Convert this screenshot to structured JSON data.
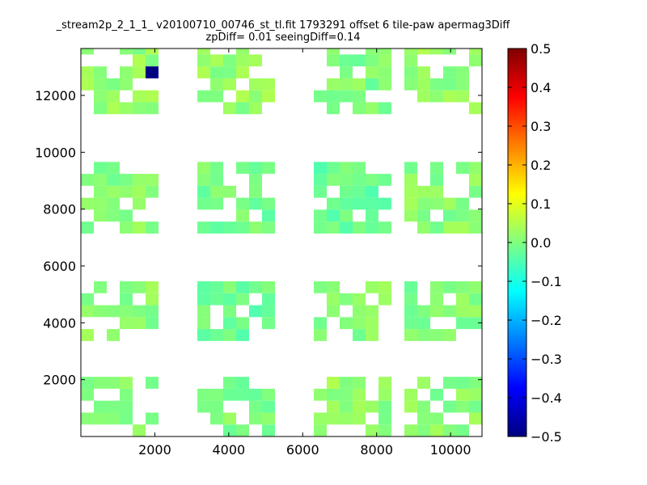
{
  "chart_data": {
    "type": "heatmap",
    "title": "_stream2p_2_1_1_ v20100710_00746_st_tl.fit 1793291 offset 6 tile-paw apermag3Diff",
    "subtitle": "zpDiff= 0.01 seeingDiff=0.14",
    "xlabel": "",
    "ylabel": "",
    "xlim": [
      0,
      10850
    ],
    "ylim": [
      0,
      13650
    ],
    "x_ticks": [
      2000,
      4000,
      6000,
      8000,
      10000
    ],
    "y_ticks": [
      2000,
      4000,
      6000,
      8000,
      10000,
      12000
    ],
    "cell_size": [
      350,
      420
    ],
    "colorbar": {
      "colormap": "jet",
      "range": [
        -0.5,
        0.5
      ],
      "ticks": [
        "0.5",
        "0.4",
        "0.3",
        "0.2",
        "0.1",
        "0.0",
        "−0.1",
        "−0.2",
        "−0.3",
        "−0.4",
        "−0.5"
      ]
    },
    "grid": false,
    "blocks": [
      {
        "x0": 0,
        "x1": 2100,
        "y0": 0,
        "y1": 2100,
        "value": 0.01
      },
      {
        "x0": 3150,
        "x1": 5250,
        "y0": 0,
        "y1": 2100,
        "value": 0.0
      },
      {
        "x0": 6300,
        "x1": 8400,
        "y0": 0,
        "y1": 2100,
        "value": 0.02
      },
      {
        "x0": 8750,
        "x1": 10850,
        "y0": 0,
        "y1": 2100,
        "value": 0.01
      },
      {
        "x0": 0,
        "x1": 2100,
        "y0": 3360,
        "y1": 5460,
        "value": 0.01
      },
      {
        "x0": 3150,
        "x1": 5250,
        "y0": 3360,
        "y1": 5460,
        "value": -0.02
      },
      {
        "x0": 6300,
        "x1": 8400,
        "y0": 3360,
        "y1": 5460,
        "value": 0.01
      },
      {
        "x0": 8750,
        "x1": 10850,
        "y0": 3360,
        "y1": 5460,
        "value": 0.0
      },
      {
        "x0": 0,
        "x1": 2100,
        "y0": 7140,
        "y1": 9660,
        "value": 0.01
      },
      {
        "x0": 3150,
        "x1": 5250,
        "y0": 7140,
        "y1": 9660,
        "value": -0.01
      },
      {
        "x0": 6300,
        "x1": 8400,
        "y0": 7140,
        "y1": 9660,
        "value": -0.02
      },
      {
        "x0": 8750,
        "x1": 10850,
        "y0": 7140,
        "y1": 9660,
        "value": 0.01
      },
      {
        "x0": 0,
        "x1": 2100,
        "y0": 11340,
        "y1": 13650,
        "value": 0.02
      },
      {
        "x0": 3150,
        "x1": 5250,
        "y0": 11340,
        "y1": 13650,
        "value": 0.02
      },
      {
        "x0": 6300,
        "x1": 8400,
        "y0": 11340,
        "y1": 13650,
        "value": 0.0
      },
      {
        "x0": 8750,
        "x1": 10850,
        "y0": 11340,
        "y1": 13650,
        "value": 0.02
      }
    ],
    "notable_cells": [
      {
        "x": 1925,
        "y": 12810,
        "value": -0.5
      }
    ]
  }
}
